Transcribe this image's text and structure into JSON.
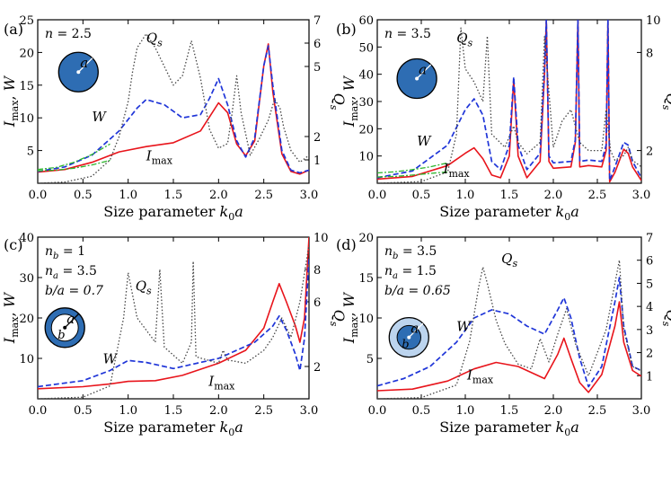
{
  "figure": {
    "description_labels": [
      "(a)",
      "(b)",
      "(c)",
      "(d)"
    ]
  },
  "colors": {
    "imax": "#e8141b",
    "w": "#1f35d8",
    "qs": "#444444",
    "approx": "#2db52d",
    "particle_outer": "#2e6db3",
    "particle_outer_light": "#bcd4ee"
  },
  "chart_data": [
    {
      "type": "line",
      "panel": "(a)",
      "xlabel": "Size parameter k0a",
      "ylabel": "Imax, W",
      "ylabel2": "Qs",
      "xlim": [
        0,
        3
      ],
      "ylim": [
        0,
        25
      ],
      "ylim2": [
        0,
        7
      ],
      "xticks": [
        "0.0",
        "0.5",
        "1.0",
        "1.5",
        "2.0",
        "2.5",
        "3.0"
      ],
      "yticks": [
        "5",
        "10",
        "15",
        "20",
        "25"
      ],
      "yticks2": [
        "1",
        "2",
        "5",
        "6",
        "7"
      ],
      "params": [
        "n = 2.5"
      ],
      "inset": "solid",
      "inset_label": "a",
      "annotations": {
        "qs": "Qs",
        "w": "W",
        "imax": "Imax"
      },
      "series": [
        {
          "name": "Imax",
          "axis": "left",
          "x": [
            0,
            0.3,
            0.6,
            0.9,
            1.2,
            1.5,
            1.8,
            2.0,
            2.1,
            2.2,
            2.3,
            2.4,
            2.5,
            2.55,
            2.6,
            2.7,
            2.8,
            2.9,
            3.0
          ],
          "y": [
            1.7,
            2.1,
            3.2,
            4.8,
            5.6,
            6.2,
            8.0,
            12.3,
            10.8,
            6.0,
            4.2,
            6.5,
            18.0,
            21.3,
            14.0,
            4.5,
            1.8,
            1.4,
            2.0
          ]
        },
        {
          "name": "W",
          "axis": "left",
          "x": [
            0,
            0.3,
            0.6,
            0.9,
            1.1,
            1.2,
            1.4,
            1.6,
            1.8,
            1.9,
            2.0,
            2.1,
            2.2,
            2.3,
            2.4,
            2.5,
            2.55,
            2.6,
            2.7,
            2.8,
            2.9,
            3.0
          ],
          "y": [
            1.8,
            2.5,
            4.3,
            8.0,
            11.5,
            12.8,
            12.0,
            10.0,
            10.5,
            13.0,
            16.0,
            12.0,
            6.5,
            4.0,
            7.0,
            18.0,
            21.0,
            15.0,
            5.0,
            2.0,
            1.6,
            2.0
          ]
        },
        {
          "name": "Qs",
          "axis": "right",
          "x": [
            0,
            0.3,
            0.6,
            0.8,
            0.9,
            1.0,
            1.05,
            1.1,
            1.2,
            1.3,
            1.5,
            1.6,
            1.7,
            1.8,
            1.9,
            2.0,
            2.1,
            2.15,
            2.2,
            2.25,
            2.35,
            2.45,
            2.55,
            2.62,
            2.68,
            2.72,
            2.8,
            2.9,
            3.0
          ],
          "y": [
            0.0,
            0.05,
            0.3,
            1.0,
            2.0,
            3.5,
            4.8,
            5.8,
            6.4,
            5.8,
            4.2,
            4.6,
            6.1,
            4.5,
            2.3,
            1.5,
            1.7,
            3.0,
            4.6,
            3.0,
            1.2,
            1.9,
            2.7,
            3.6,
            3.2,
            2.4,
            1.4,
            0.9,
            1.2
          ]
        },
        {
          "name": "approx",
          "axis": "left",
          "style": "dashdot",
          "x": [
            0,
            0.2,
            0.4,
            0.6,
            0.8
          ],
          "y": [
            2.1,
            2.4,
            3.2,
            4.4,
            6.0
          ]
        },
        {
          "name": "approx2",
          "axis": "left",
          "style": "dashdot",
          "x": [
            0,
            0.2,
            0.4,
            0.6,
            0.8
          ],
          "y": [
            1.9,
            2.0,
            2.3,
            2.8,
            3.5
          ]
        }
      ]
    },
    {
      "type": "line",
      "panel": "(b)",
      "xlabel": "Size parameter k0a",
      "ylabel": "Imax, W",
      "ylabel2": "Qs",
      "xlim": [
        0,
        3
      ],
      "ylim": [
        0,
        60
      ],
      "ylim2": [
        0,
        10
      ],
      "xticks": [
        "0.0",
        "0.5",
        "1.0",
        "1.5",
        "2.0",
        "2.5",
        "3.0"
      ],
      "yticks": [
        "10",
        "20",
        "30",
        "40",
        "50",
        "60"
      ],
      "yticks2": [
        "2",
        "8",
        "10"
      ],
      "params": [
        "n = 3.5"
      ],
      "inset": "solid",
      "inset_label": "a",
      "annotations": {
        "qs": "Qs",
        "w": "W",
        "imax": "Imax"
      },
      "series": [
        {
          "name": "Imax",
          "axis": "left",
          "x": [
            0,
            0.4,
            0.8,
            1.0,
            1.1,
            1.2,
            1.3,
            1.4,
            1.5,
            1.55,
            1.6,
            1.7,
            1.85,
            1.9,
            1.92,
            1.95,
            2.0,
            2.2,
            2.25,
            2.28,
            2.3,
            2.4,
            2.55,
            2.6,
            2.62,
            2.64,
            2.7,
            2.8,
            2.85,
            2.9,
            3.0
          ],
          "y": [
            1.5,
            2.5,
            6.5,
            11.0,
            13.0,
            9.0,
            3.0,
            2.0,
            10.0,
            38.0,
            10.0,
            2.0,
            8.0,
            40.0,
            60.0,
            8.0,
            5.5,
            6.0,
            15.0,
            60.0,
            6.0,
            6.5,
            6.0,
            12.0,
            60.0,
            0.5,
            4.0,
            12.5,
            11.0,
            6.0,
            1.0
          ]
        },
        {
          "name": "W",
          "axis": "left",
          "x": [
            0,
            0.4,
            0.8,
            1.0,
            1.1,
            1.2,
            1.3,
            1.4,
            1.5,
            1.55,
            1.6,
            1.7,
            1.85,
            1.9,
            1.92,
            1.95,
            2.0,
            2.2,
            2.25,
            2.28,
            2.3,
            2.4,
            2.55,
            2.6,
            2.62,
            2.64,
            2.7,
            2.8,
            2.85,
            2.9,
            3.0
          ],
          "y": [
            2.0,
            4.5,
            14.0,
            27.0,
            31.0,
            25.0,
            8.0,
            5.0,
            14.0,
            39.0,
            14.0,
            5.0,
            11.0,
            42.0,
            60.0,
            10.0,
            7.5,
            8.0,
            16.0,
            60.0,
            8.0,
            8.5,
            8.0,
            14.0,
            60.0,
            1.0,
            6.0,
            15.0,
            14.0,
            8.0,
            2.0
          ]
        },
        {
          "name": "Qs",
          "axis": "right",
          "x": [
            0,
            0.5,
            0.8,
            0.9,
            0.95,
            1.0,
            1.1,
            1.2,
            1.25,
            1.3,
            1.45,
            1.55,
            1.6,
            1.7,
            1.85,
            1.9,
            2.0,
            2.1,
            2.2,
            2.3,
            2.4,
            2.55,
            2.6,
            2.65,
            2.7,
            2.8,
            2.85,
            2.9,
            3.0
          ],
          "y": [
            0.0,
            0.1,
            0.7,
            3.0,
            9.5,
            7.0,
            6.2,
            5.0,
            9.0,
            3.0,
            2.2,
            3.5,
            2.5,
            1.8,
            2.5,
            9.0,
            2.2,
            3.8,
            4.5,
            2.5,
            2.0,
            2.0,
            4.5,
            2.0,
            1.4,
            1.7,
            2.2,
            1.4,
            1.0
          ]
        },
        {
          "name": "approx",
          "axis": "left",
          "style": "dashdot",
          "x": [
            0,
            0.2,
            0.4,
            0.6,
            0.8
          ],
          "y": [
            3.8,
            4.2,
            5.0,
            6.0,
            7.5
          ]
        },
        {
          "name": "approx2",
          "axis": "left",
          "style": "dashdot",
          "x": [
            0,
            0.2,
            0.4,
            0.6,
            0.8
          ],
          "y": [
            2.3,
            2.5,
            3.0,
            3.6,
            4.2
          ]
        }
      ]
    },
    {
      "type": "line",
      "panel": "(c)",
      "xlabel": "Size parameter k0a",
      "ylabel": "Imax, W",
      "ylabel2": "Qs",
      "xlim": [
        0,
        3
      ],
      "ylim": [
        0,
        40
      ],
      "ylim2": [
        0,
        10
      ],
      "xticks": [
        "0.0",
        "0.5",
        "1.0",
        "1.5",
        "2.0",
        "2.5",
        "3.0"
      ],
      "yticks": [
        "10",
        "20",
        "30",
        "40"
      ],
      "yticks2": [
        "2",
        "6",
        "8",
        "10"
      ],
      "params": [
        "nb = 1",
        "na = 3.5",
        "b/a = 0.7"
      ],
      "inset": "shell",
      "inset_label": "a",
      "inset_label_inner": "b",
      "annotations": {
        "qs": "Qs",
        "w": "W",
        "imax": "Imax"
      },
      "series": [
        {
          "name": "Imax",
          "axis": "left",
          "x": [
            0,
            0.5,
            0.8,
            1.0,
            1.3,
            1.6,
            2.0,
            2.3,
            2.5,
            2.6,
            2.67,
            2.75,
            2.85,
            2.9,
            2.95,
            3.0
          ],
          "y": [
            2.5,
            3.0,
            3.7,
            4.3,
            4.5,
            5.8,
            8.8,
            12.0,
            17.5,
            24.0,
            28.5,
            24.0,
            18.0,
            14.0,
            20.0,
            40.0
          ]
        },
        {
          "name": "W",
          "axis": "left",
          "x": [
            0,
            0.5,
            0.8,
            1.0,
            1.2,
            1.5,
            2.0,
            2.4,
            2.6,
            2.67,
            2.75,
            2.85,
            2.9,
            2.95,
            3.0
          ],
          "y": [
            3.0,
            4.5,
            7.0,
            9.5,
            9.0,
            7.5,
            10.0,
            14.0,
            18.0,
            20.5,
            17.0,
            11.0,
            7.0,
            15.0,
            35.0
          ]
        },
        {
          "name": "Qs",
          "axis": "right",
          "x": [
            0,
            0.5,
            0.8,
            0.95,
            1.0,
            1.1,
            1.3,
            1.35,
            1.4,
            1.6,
            1.7,
            1.72,
            1.75,
            2.0,
            2.05,
            2.1,
            2.3,
            2.4,
            2.5,
            2.6,
            2.7,
            2.8,
            2.9,
            3.0
          ],
          "y": [
            0.0,
            0.1,
            0.8,
            5.0,
            7.8,
            5.0,
            3.5,
            8.0,
            3.2,
            2.2,
            3.5,
            8.5,
            2.6,
            2.2,
            3.0,
            2.4,
            2.2,
            2.6,
            3.0,
            3.8,
            5.0,
            3.8,
            6.0,
            9.5
          ]
        }
      ]
    },
    {
      "type": "line",
      "panel": "(d)",
      "xlabel": "Size parameter k0a",
      "ylabel": "Imax, W",
      "ylabel2": "Qs",
      "xlim": [
        0,
        3
      ],
      "ylim": [
        0,
        20
      ],
      "ylim2": [
        0,
        7
      ],
      "xticks": [
        "0.0",
        "0.5",
        "1.0",
        "1.5",
        "2.0",
        "2.5",
        "3.0"
      ],
      "yticks": [
        "5",
        "10",
        "15",
        "20"
      ],
      "yticks2": [
        "1",
        "2",
        "3",
        "4",
        "5",
        "6",
        "7"
      ],
      "params": [
        "nb = 3.5",
        "na = 1.5",
        "b/a = 0.65"
      ],
      "inset": "core",
      "inset_label": "a",
      "inset_label_inner": "b",
      "annotations": {
        "qs": "Qs",
        "w": "W",
        "imax": "Imax"
      },
      "series": [
        {
          "name": "Imax",
          "axis": "left",
          "x": [
            0,
            0.4,
            0.8,
            1.1,
            1.35,
            1.6,
            1.9,
            2.05,
            2.12,
            2.2,
            2.3,
            2.4,
            2.55,
            2.7,
            2.75,
            2.8,
            2.9,
            3.0
          ],
          "y": [
            1.0,
            1.2,
            2.2,
            3.7,
            4.5,
            4.0,
            2.5,
            5.5,
            7.5,
            5.0,
            2.0,
            0.8,
            3.0,
            9.0,
            12.0,
            7.0,
            3.5,
            2.8
          ]
        },
        {
          "name": "W",
          "axis": "left",
          "x": [
            0,
            0.3,
            0.6,
            0.9,
            1.1,
            1.3,
            1.5,
            1.7,
            1.9,
            2.05,
            2.12,
            2.2,
            2.3,
            2.4,
            2.55,
            2.7,
            2.75,
            2.8,
            2.9,
            3.0
          ],
          "y": [
            1.6,
            2.5,
            4.0,
            7.0,
            10.0,
            11.0,
            10.5,
            9.0,
            8.0,
            11.0,
            12.5,
            10.0,
            5.0,
            1.5,
            4.0,
            12.0,
            15.0,
            9.0,
            4.0,
            3.5
          ]
        },
        {
          "name": "Qs",
          "axis": "right",
          "x": [
            0,
            0.5,
            0.9,
            1.05,
            1.15,
            1.2,
            1.25,
            1.35,
            1.45,
            1.6,
            1.75,
            1.85,
            1.95,
            2.05,
            2.15,
            2.25,
            2.4,
            2.5,
            2.6,
            2.7,
            2.75,
            2.8,
            2.9,
            3.0
          ],
          "y": [
            0.0,
            0.05,
            0.6,
            2.5,
            4.8,
            5.7,
            5.0,
            3.4,
            2.4,
            1.5,
            1.3,
            2.6,
            1.6,
            2.8,
            3.9,
            2.4,
            1.0,
            2.0,
            3.0,
            5.0,
            6.0,
            3.0,
            1.4,
            1.2
          ]
        }
      ]
    }
  ]
}
